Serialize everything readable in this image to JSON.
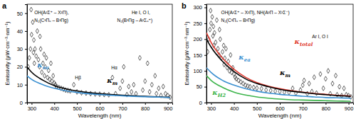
{
  "chart_data": [
    {
      "type": "line",
      "title": "a",
      "x_label": "Wavelength (nm)",
      "y_label": "Emissivity (μW·cm⁻³·nm⁻¹)",
      "xlim": [
        280,
        920
      ],
      "xticks": [
        300,
        400,
        500,
        600,
        700,
        800,
        900
      ],
      "ylim": [
        0,
        55
      ],
      "yticks": [
        0,
        10,
        20,
        30,
        40,
        50
      ],
      "annotations": [
        "OH(A²Σ⁺ – X²Π),",
        "N₂(C³Πᵤ – B³Πg)",
        "Hβ",
        "Hα",
        "He I, O I,",
        "N₂(B³Πg – A³Σᵤ⁺)"
      ],
      "series": [
        {
          "type": "scatter",
          "marker": "diamond",
          "color": "#000000",
          "x": [
            285,
            290,
            295,
            298,
            300,
            305,
            308,
            310,
            312,
            315,
            320,
            325,
            330,
            335,
            337,
            340,
            345,
            350,
            355,
            357,
            360,
            365,
            370,
            375,
            380,
            385,
            390,
            395,
            400,
            405,
            410,
            420,
            430,
            440,
            450,
            460,
            470,
            486,
            500,
            520,
            540,
            560,
            580,
            600,
            620,
            640,
            656,
            670,
            690,
            700,
            706,
            720,
            728,
            740,
            750,
            760,
            777,
            790,
            800,
            811,
            820,
            830,
            844,
            850,
            860,
            870,
            880,
            890,
            900,
            910
          ],
          "values": [
            20,
            25,
            30,
            52,
            38,
            45,
            28,
            35,
            22,
            30,
            26,
            40,
            24,
            20,
            37,
            30,
            17,
            22,
            27,
            15,
            20,
            25,
            14,
            18,
            13,
            22,
            12,
            15,
            11,
            10,
            9,
            8.5,
            8,
            7.5,
            7,
            6.8,
            6.5,
            10,
            6,
            5.5,
            5.3,
            5,
            4.8,
            4.7,
            4.5,
            4.4,
            14,
            5,
            8,
            12,
            20,
            4.5,
            9,
            6,
            10,
            5,
            25,
            7,
            12,
            22,
            6,
            10,
            15,
            5,
            8,
            4,
            9,
            5,
            4,
            3
          ]
        },
        {
          "type": "line",
          "name": "κm",
          "color": "#000000",
          "x": [
            280,
            300,
            350,
            400,
            450,
            500,
            550,
            600,
            650,
            700,
            750,
            800,
            850,
            900,
            910
          ],
          "values": [
            20,
            17,
            12.5,
            9.5,
            7.7,
            6.5,
            5.6,
            5,
            4.5,
            4.1,
            3.8,
            3.5,
            3.2,
            3,
            2.9
          ]
        },
        {
          "type": "line",
          "name": "κea",
          "color": "#3a8fd0",
          "x": [
            280,
            300,
            350,
            400,
            450,
            500,
            550,
            600,
            650,
            700,
            750,
            800,
            850,
            900,
            910
          ],
          "values": [
            15,
            13,
            10,
            8,
            6.6,
            5.7,
            5,
            4.5,
            4.1,
            3.8,
            3.5,
            3.3,
            3.1,
            2.9,
            2.8
          ]
        }
      ]
    },
    {
      "type": "line",
      "title": "b",
      "x_label": "Wavelength (nm)",
      "y_label": "Emissivity (μW·cm⁻³·nm⁻¹)",
      "xlim": [
        280,
        920
      ],
      "xticks": [
        300,
        400,
        500,
        600,
        700,
        800,
        900
      ],
      "ylim": [
        0,
        310
      ],
      "yticks": [
        0,
        50,
        100,
        150,
        200,
        250,
        300
      ],
      "annotations": [
        "OH(A²Σ⁺ – X²Π), NH(A³Π – X³Σ⁻)",
        "N₂(C³Πᵤ – B³Πg)",
        "Ar I, O I"
      ],
      "series": [
        {
          "type": "scatter",
          "marker": "diamond",
          "color": "#000000",
          "x": [
            285,
            290,
            295,
            298,
            300,
            305,
            308,
            310,
            312,
            315,
            320,
            325,
            330,
            335,
            337,
            340,
            345,
            350,
            355,
            357,
            360,
            365,
            370,
            375,
            380,
            385,
            390,
            395,
            400,
            405,
            410,
            420,
            430,
            440,
            450,
            460,
            470,
            486,
            500,
            520,
            540,
            560,
            580,
            600,
            620,
            640,
            656,
            670,
            690,
            700,
            706,
            720,
            728,
            740,
            750,
            760,
            777,
            790,
            800,
            811,
            820,
            830,
            844,
            850,
            860,
            870,
            880,
            890,
            900,
            910
          ],
          "values": [
            160,
            200,
            230,
            290,
            250,
            270,
            210,
            240,
            180,
            220,
            190,
            260,
            170,
            150,
            230,
            200,
            140,
            160,
            180,
            120,
            140,
            170,
            110,
            130,
            100,
            150,
            95,
            110,
            90,
            80,
            75,
            70,
            65,
            60,
            55,
            52,
            50,
            48,
            46,
            44,
            40,
            38,
            36,
            35,
            33,
            32,
            45,
            30,
            40,
            55,
            70,
            28,
            60,
            35,
            80,
            30,
            90,
            45,
            75,
            100,
            28,
            60,
            85,
            25,
            50,
            22,
            45,
            25,
            22,
            18
          ]
        },
        {
          "type": "line",
          "name": "κtotal",
          "color": "#e03a2f",
          "x": [
            280,
            300,
            350,
            400,
            450,
            500,
            550,
            600,
            650,
            700,
            750,
            800,
            850,
            900,
            910
          ],
          "values": [
            220,
            190,
            140,
            105,
            80,
            63,
            52,
            44,
            38,
            33,
            29,
            26,
            23,
            21,
            20
          ]
        },
        {
          "type": "line",
          "name": "κm",
          "color": "#000000",
          "x": [
            280,
            300,
            350,
            400,
            450,
            500,
            550,
            600,
            650,
            700,
            750,
            800,
            850,
            900,
            910
          ],
          "values": [
            200,
            175,
            130,
            98,
            75,
            60,
            50,
            42,
            36,
            32,
            28,
            25,
            22,
            20,
            19
          ]
        },
        {
          "type": "line",
          "name": "κea",
          "color": "#3a8fd0",
          "x": [
            280,
            300,
            350,
            400,
            450,
            500,
            550,
            600,
            650,
            700,
            750,
            800,
            850,
            900,
            910
          ],
          "values": [
            110,
            95,
            70,
            55,
            44,
            36,
            30,
            26,
            23,
            20,
            18,
            16,
            15,
            14,
            13
          ]
        },
        {
          "type": "line",
          "name": "κH2",
          "color": "#3cb44b",
          "x": [
            280,
            300,
            350,
            400,
            450,
            500,
            550,
            600,
            650,
            700,
            750,
            800,
            850,
            900,
            910
          ],
          "values": [
            85,
            70,
            48,
            33,
            24,
            18,
            14,
            11,
            9,
            8,
            7,
            6,
            5,
            4.5,
            4
          ]
        }
      ]
    }
  ]
}
